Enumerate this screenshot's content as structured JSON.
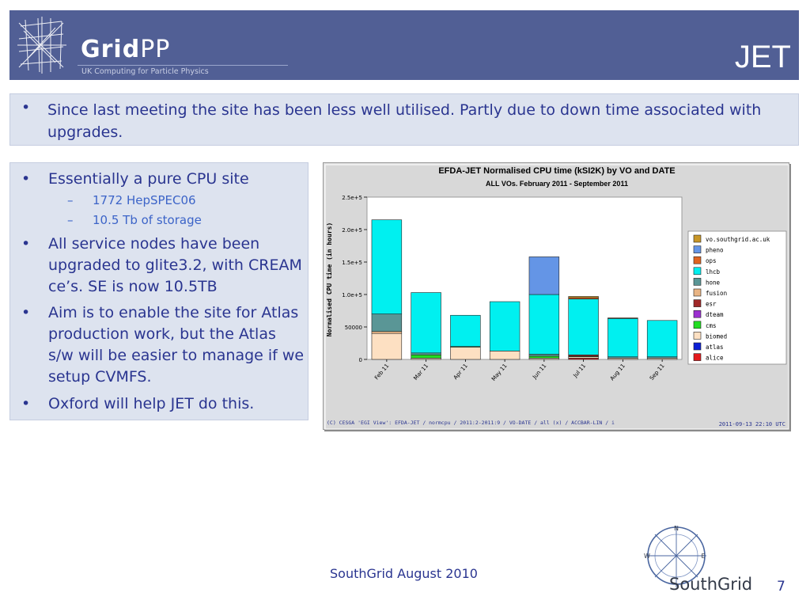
{
  "header": {
    "logo_bold": "Grid",
    "logo_light": "PP",
    "logo_tagline": "UK Computing for Particle Physics",
    "title": "JET"
  },
  "top_bullet": "Since last meeting the site has been less well utilised. Partly due to down time associated with upgrades.",
  "left_bullets": {
    "item1": "Essentially a pure CPU site",
    "sub1": "1772 HepSPEC06",
    "sub2": "10.5 Tb of storage",
    "item2": "All service nodes have been upgraded to glite3.2, with CREAM ce’s. SE is now 10.5TB",
    "item3": "Aim is to enable the site for Atlas production work, but the Atlas s/w will be easier to manage if we setup CVMFS.",
    "item4": "Oxford will help JET do this."
  },
  "chart_data": {
    "type": "bar",
    "stacked": true,
    "title": "EFDA-JET  Normalised CPU time (kSI2K) by VO and DATE",
    "subtitle": "ALL VOs. February 2011 - September 2011",
    "ylabel": "Normalised CPU time (in hours)",
    "xlabel": "",
    "categories": [
      "Feb 11",
      "Mar 11",
      "Apr 11",
      "May 11",
      "Jun 11",
      "Jul 11",
      "Aug 11",
      "Sep 11"
    ],
    "ylim": [
      0,
      250000
    ],
    "yticks": [
      0,
      50000,
      100000,
      150000,
      200000,
      250000
    ],
    "ytick_labels": [
      "0",
      "50000",
      "1.0e+5",
      "1.5e+5",
      "2.0e+5",
      "2.5e+5"
    ],
    "grid": false,
    "legend_position": "right",
    "series": [
      {
        "name": "alice",
        "color": "#e31a1c",
        "values": [
          0,
          0,
          0,
          0,
          0,
          2000,
          0,
          0
        ]
      },
      {
        "name": "atlas",
        "color": "#0b1fd6",
        "values": [
          0,
          0,
          0,
          0,
          0,
          0,
          0,
          0
        ]
      },
      {
        "name": "biomed",
        "color": "#fde0c2",
        "values": [
          40000,
          2000,
          19000,
          13000,
          2000,
          2000,
          2000,
          2000
        ]
      },
      {
        "name": "cms",
        "color": "#22dd22",
        "values": [
          0,
          5000,
          1000,
          0,
          3000,
          1000,
          0,
          0
        ]
      },
      {
        "name": "dteam",
        "color": "#9b30d0",
        "values": [
          0,
          0,
          0,
          0,
          0,
          0,
          0,
          0
        ]
      },
      {
        "name": "esr",
        "color": "#a02828",
        "values": [
          0,
          0,
          0,
          0,
          0,
          2000,
          0,
          0
        ]
      },
      {
        "name": "fusion",
        "color": "#e8b484",
        "values": [
          3000,
          0,
          0,
          0,
          0,
          0,
          0,
          0
        ]
      },
      {
        "name": "hone",
        "color": "#5a9696",
        "values": [
          27000,
          3000,
          0,
          0,
          3000,
          0,
          2000,
          2000
        ]
      },
      {
        "name": "lhcb",
        "color": "#00f0f0",
        "values": [
          145000,
          93000,
          48000,
          76000,
          92000,
          86000,
          59000,
          56000
        ]
      },
      {
        "name": "ops",
        "color": "#e06420",
        "values": [
          0,
          0,
          0,
          0,
          0,
          2000,
          1000,
          0
        ]
      },
      {
        "name": "pheno",
        "color": "#6495e6",
        "values": [
          0,
          0,
          0,
          0,
          58000,
          0,
          0,
          0
        ]
      },
      {
        "name": "vo.southgrid.ac.uk",
        "color": "#c89626",
        "values": [
          0,
          0,
          0,
          0,
          0,
          2000,
          0,
          0
        ]
      }
    ],
    "footer_left": "(C) CESGA 'EGI View': EFDA-JET / normcpu / 2011:2-2011:9 / VO-DATE / all (x) / ACCBAR-LIN / i",
    "footer_right": "2011-09-13 22:10 UTC"
  },
  "footer": {
    "text": "SouthGrid August 2010",
    "brand": "SouthGrid",
    "compass_n": "N",
    "compass_w": "W",
    "compass_e": "E",
    "page_number": "7"
  }
}
